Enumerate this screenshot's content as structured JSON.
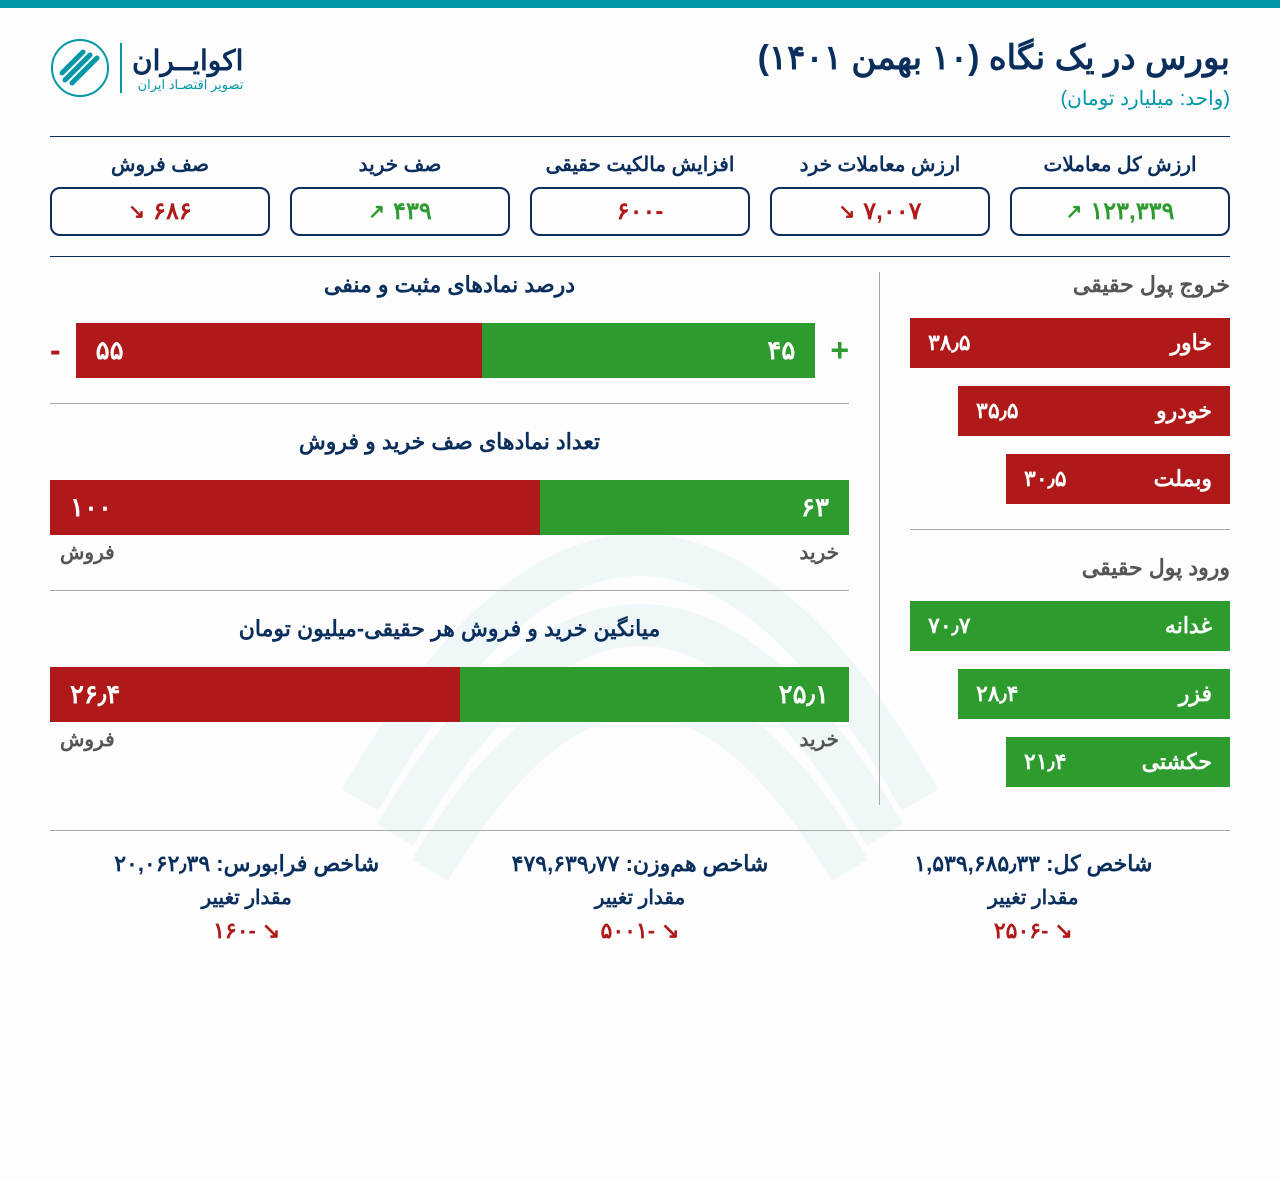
{
  "header": {
    "title": "بورس در یک نگاه (۱۰ بهمن ۱۴۰۱)",
    "subtitle": "(واحد: میلیارد تومان)",
    "logo_name": "اکوایــران",
    "logo_tagline": "تصویر اقتصـاد ایران"
  },
  "colors": {
    "primary": "#0a2f5c",
    "accent": "#0097a7",
    "green": "#2e9b2e",
    "red": "#b01919",
    "gray": "#555555"
  },
  "stats": [
    {
      "label": "ارزش کل معاملات",
      "value": "۱۲۳,۳۳۹",
      "direction": "up",
      "color": "green"
    },
    {
      "label": "ارزش معاملات خرد",
      "value": "۷,۰۰۷",
      "direction": "down",
      "color": "red"
    },
    {
      "label": "افزایش مالکیت حقیقی",
      "value": "-۶۰۰",
      "direction": "none",
      "color": "red"
    },
    {
      "label": "صف خرید",
      "value": "۴۳۹",
      "direction": "up",
      "color": "green"
    },
    {
      "label": "صف فروش",
      "value": "۶۸۶",
      "direction": "down",
      "color": "red"
    }
  ],
  "outflow": {
    "title": "خروج پول حقیقی",
    "items": [
      {
        "name": "خاور",
        "value": "۳۸٫۵"
      },
      {
        "name": "خودرو",
        "value": "۳۵٫۵"
      },
      {
        "name": "وبملت",
        "value": "۳۰٫۵"
      }
    ]
  },
  "inflow": {
    "title": "ورود پول حقیقی",
    "items": [
      {
        "name": "غدانه",
        "value": "۷۰٫۷"
      },
      {
        "name": "فزر",
        "value": "۲۸٫۴"
      },
      {
        "name": "حکشتی",
        "value": "۲۱٫۴"
      }
    ]
  },
  "charts": {
    "posneg": {
      "title": "درصد نمادهای مثبت و منفی",
      "positive": 45,
      "positive_label": "۴۵",
      "negative": 55,
      "negative_label": "۵۵"
    },
    "queues": {
      "title": "تعداد نمادهای صف خرید و فروش",
      "buy": 63,
      "buy_label": "۶۳",
      "buy_caption": "خرید",
      "sell": 100,
      "sell_label": "۱۰۰",
      "sell_caption": "فروش"
    },
    "avg": {
      "title": "میانگین خرید و فروش هر حقیقی-میلیون تومان",
      "buy": 25.1,
      "buy_label": "۲۵٫۱",
      "buy_caption": "خرید",
      "sell": 26.4,
      "sell_label": "۲۶٫۴",
      "sell_caption": "فروش"
    }
  },
  "indices": [
    {
      "label": "شاخص کل: ۱,۵۳۹,۶۸۵٫۳۳",
      "change_label": "مقدار تغییر",
      "change": "-۲۵۰۶"
    },
    {
      "label": "شاخص هم‌وزن: ۴۷۹,۶۳۹٫۷۷",
      "change_label": "مقدار تغییر",
      "change": "-۵۰۰۱"
    },
    {
      "label": "شاخص فرابورس: ۲۰,۰۶۲٫۳۹",
      "change_label": "مقدار تغییر",
      "change": "-۱۶۰"
    }
  ]
}
